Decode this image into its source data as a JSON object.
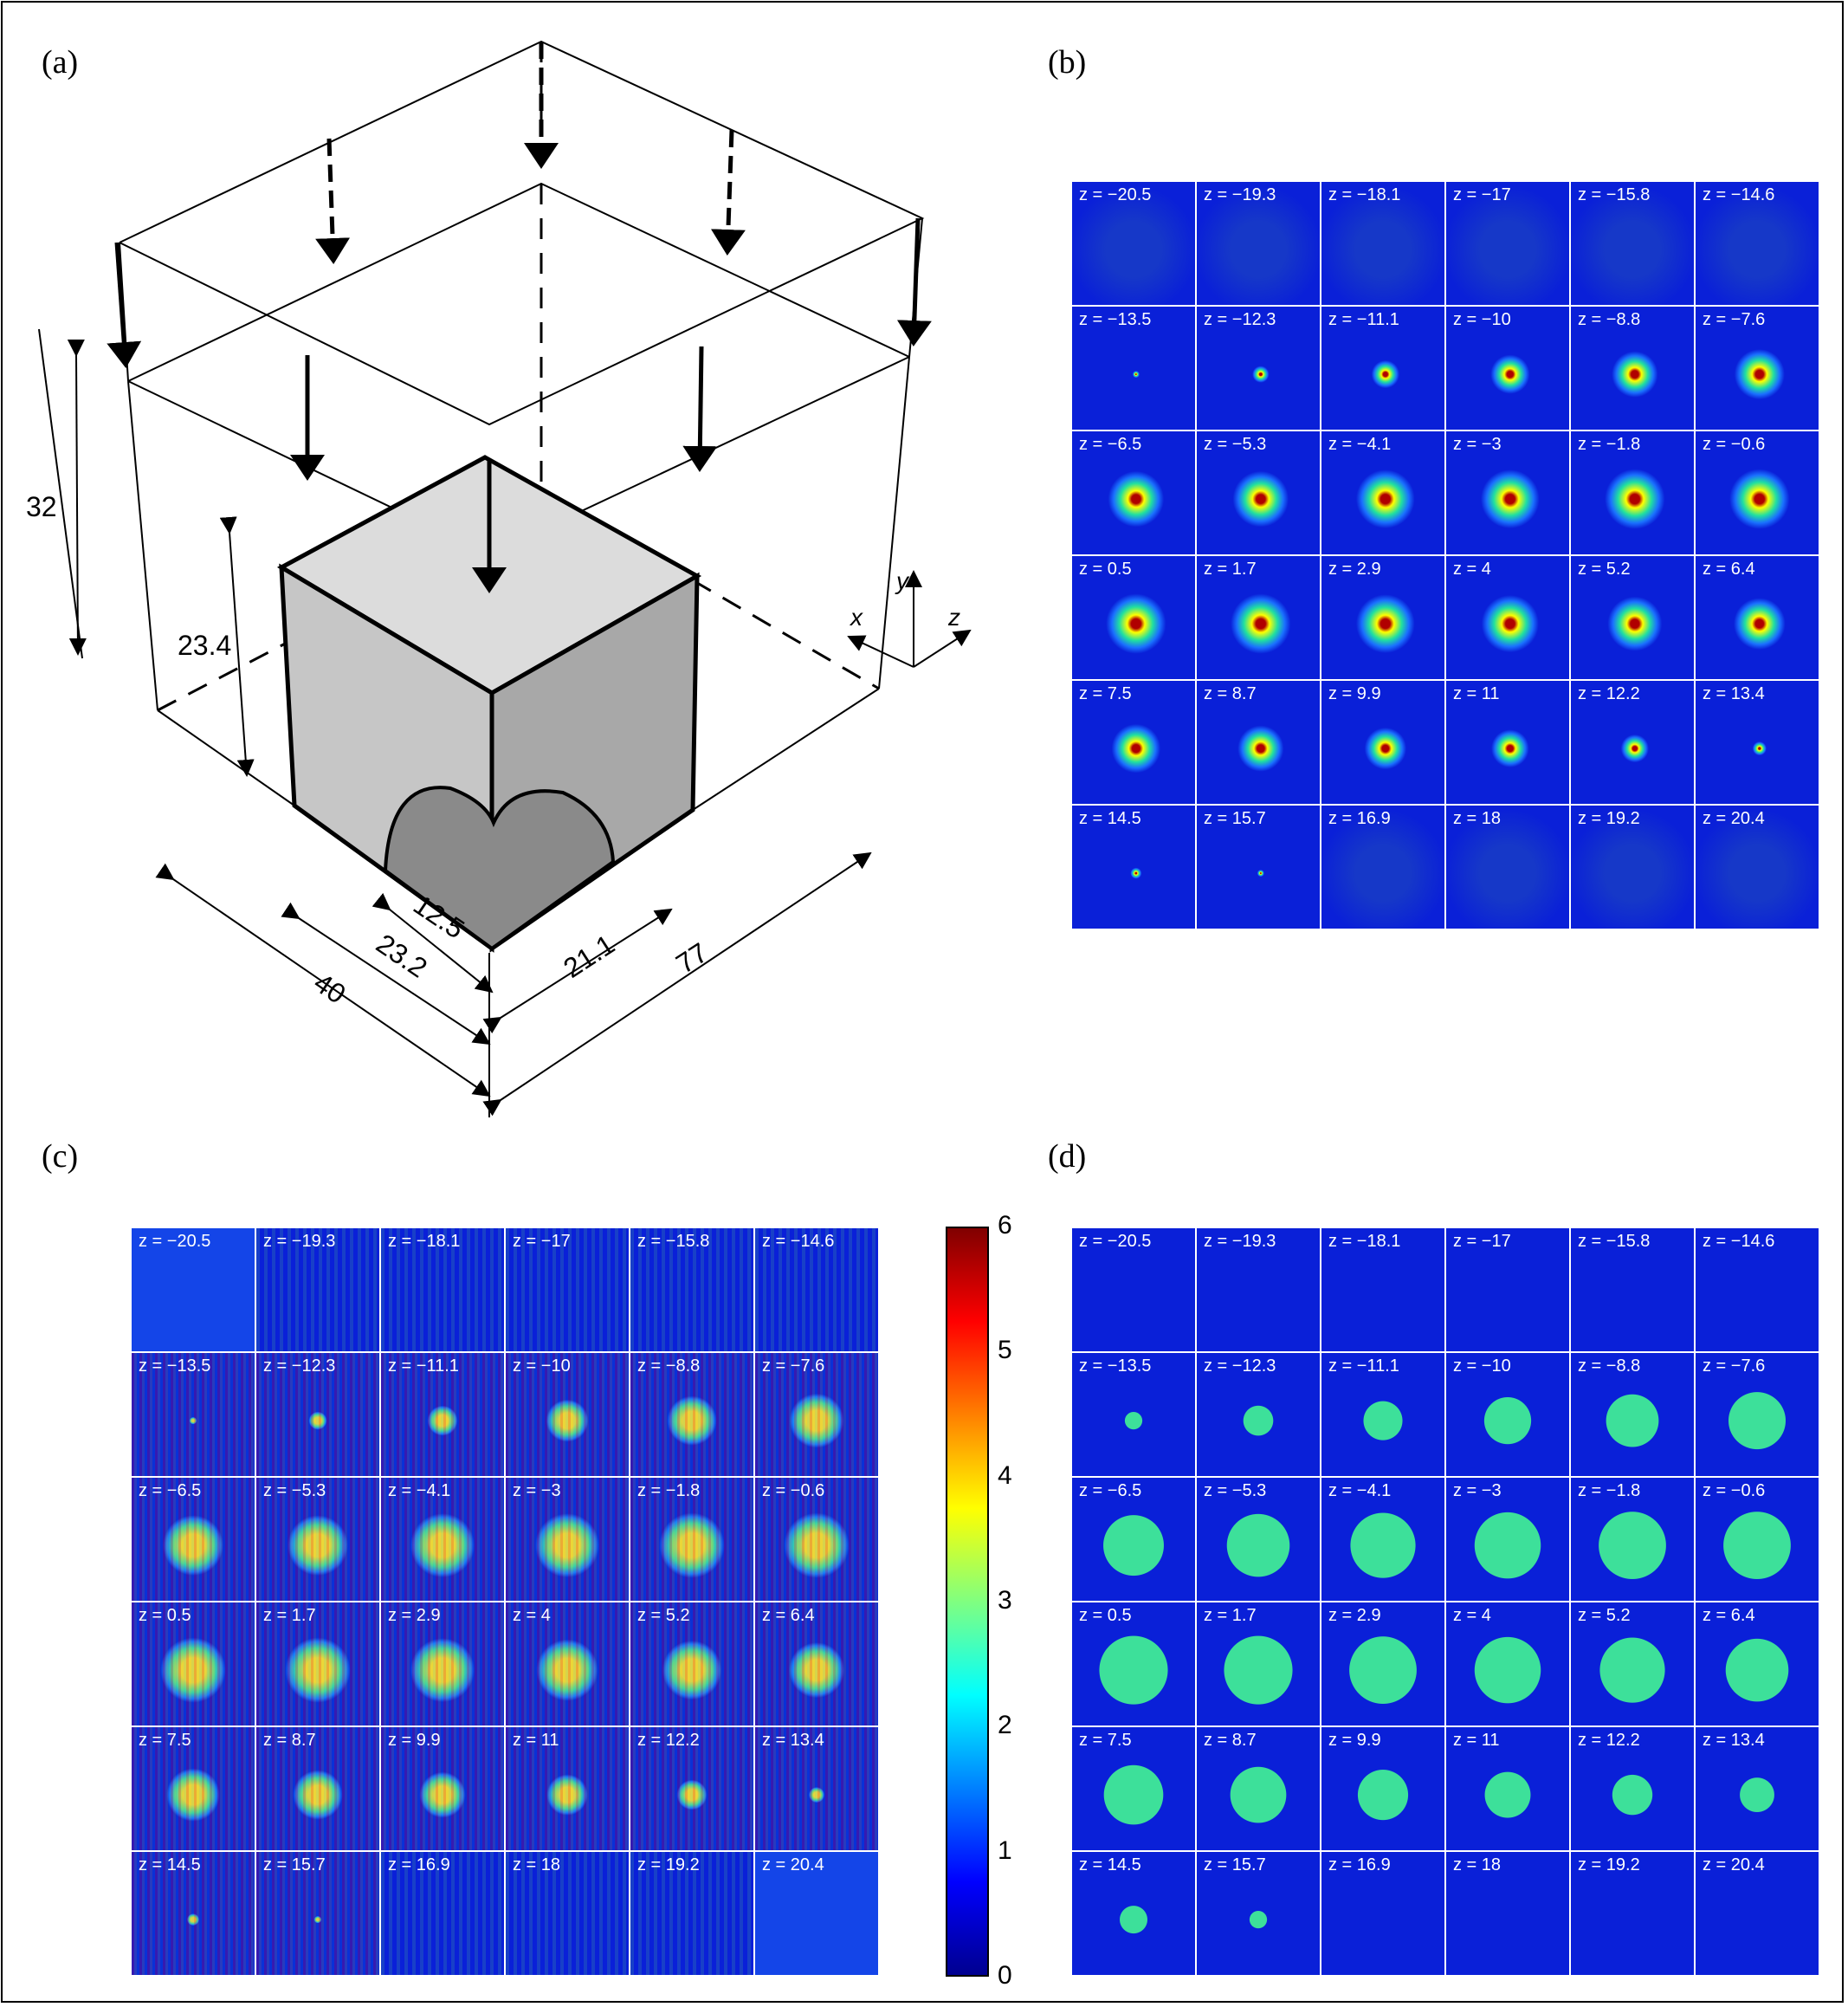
{
  "panels": {
    "a": {
      "label": "(a)",
      "dims": {
        "d32": "32",
        "d23_4": "23.4",
        "d40": "40",
        "d23_2": "23.2",
        "d12_5": "12.5",
        "d21_1": "21.1",
        "d77": "77"
      },
      "axes": {
        "x": "x",
        "y": "y",
        "z": "z"
      }
    },
    "b": {
      "label": "(b)",
      "kind": "recon-smooth"
    },
    "c": {
      "label": "(c)",
      "kind": "recon-noisy"
    },
    "d": {
      "label": "(d)",
      "kind": "true"
    }
  },
  "slices": [
    "z = −20.5",
    "z = −19.3",
    "z = −18.1",
    "z = −17",
    "z = −15.8",
    "z = −14.6",
    "z = −13.5",
    "z = −12.3",
    "z = −11.1",
    "z = −10",
    "z = −8.8",
    "z = −7.6",
    "z = −6.5",
    "z = −5.3",
    "z = −4.1",
    "z = −3",
    "z = −1.8",
    "z = −0.6",
    "z = 0.5",
    "z = 1.7",
    "z = 2.9",
    "z = 4",
    "z = 5.2",
    "z = 6.4",
    "z = 7.5",
    "z = 8.7",
    "z = 9.9",
    "z = 11",
    "z = 12.2",
    "z = 13.4",
    "z = 14.5",
    "z = 15.7",
    "z = 16.9",
    "z = 18",
    "z = 19.2",
    "z = 20.4"
  ],
  "slice_intensity_d": [
    0,
    0,
    0,
    0,
    0,
    0,
    0.15,
    0.26,
    0.34,
    0.41,
    0.46,
    0.5,
    0.53,
    0.55,
    0.57,
    0.58,
    0.59,
    0.59,
    0.6,
    0.6,
    0.59,
    0.58,
    0.57,
    0.55,
    0.52,
    0.49,
    0.44,
    0.4,
    0.35,
    0.3,
    0.24,
    0.15,
    0,
    0,
    0,
    0
  ],
  "slice_intensity_b": [
    0,
    0,
    0,
    0,
    0,
    0,
    0.05,
    0.12,
    0.2,
    0.28,
    0.33,
    0.36,
    0.4,
    0.4,
    0.42,
    0.42,
    0.43,
    0.43,
    0.43,
    0.43,
    0.42,
    0.41,
    0.39,
    0.37,
    0.35,
    0.33,
    0.3,
    0.27,
    0.2,
    0.1,
    0.08,
    0.05,
    0,
    0,
    0,
    0
  ],
  "colorbar": {
    "ticks": [
      "0",
      "1",
      "2",
      "3",
      "4",
      "5",
      "6"
    ]
  },
  "colors": {
    "background_blue": "#0a20d8",
    "phantom": "#3de09a"
  }
}
